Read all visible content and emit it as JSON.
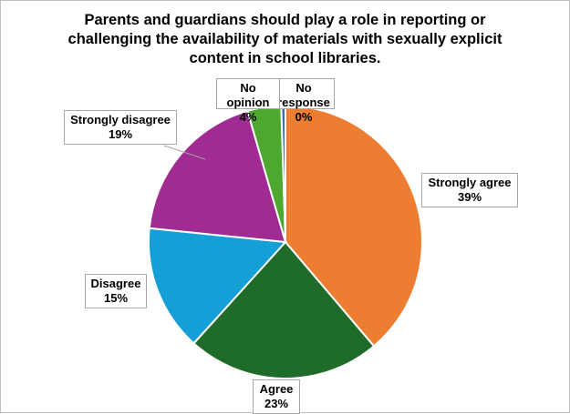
{
  "chart_data": {
    "type": "pie",
    "title": "Parents and guardians should play a role in reporting or challenging the availability of materials with sexually explicit content in school libraries.",
    "slices": [
      {
        "label": "Strongly agree",
        "value": 39,
        "display": "39%",
        "color": "#ED7D31"
      },
      {
        "label": "Agree",
        "value": 23,
        "display": "23%",
        "color": "#1F6B2A"
      },
      {
        "label": "Disagree",
        "value": 15,
        "display": "15%",
        "color": "#149FD6"
      },
      {
        "label": "Strongly disagree",
        "value": 19,
        "display": "19%",
        "color": "#A02B93"
      },
      {
        "label": "No opinion",
        "value": 4,
        "display": "4%",
        "color": "#4EA72E"
      },
      {
        "label": "No response",
        "value": 0.5,
        "display": "0%",
        "color": "#2E75B6"
      }
    ],
    "start": "top",
    "direction": "clockwise"
  }
}
